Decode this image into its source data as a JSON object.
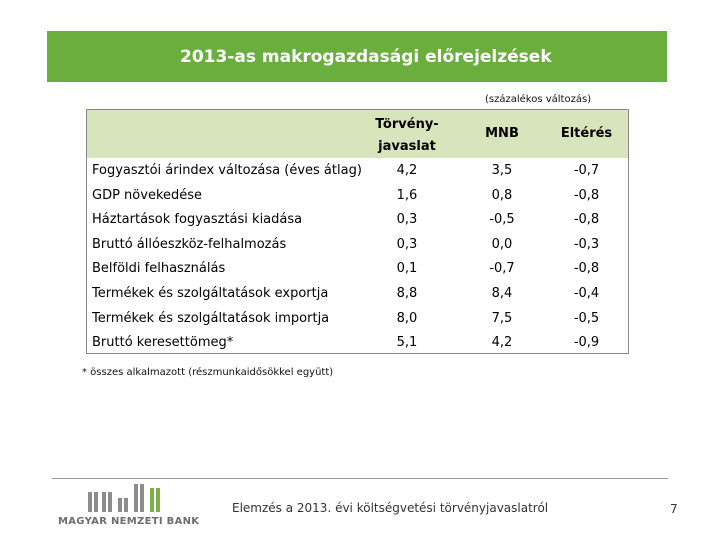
{
  "title": "2013-as makrogazdasági előrejelzések",
  "unit_note": "(százalékos változás)",
  "table": {
    "headers": {
      "col1_line1": "Törvény-",
      "col1_line2": "javaslat",
      "col2": "MNB",
      "col3": "Eltérés"
    },
    "rows": [
      {
        "label": "Fogyasztói árindex változása (éves átlag)",
        "v1": "4,2",
        "v2": "3,5",
        "v3": "-0,7"
      },
      {
        "label": "GDP növekedése",
        "v1": "1,6",
        "v2": "0,8",
        "v3": "-0,8"
      },
      {
        "label": "Háztartások fogyasztási kiadása",
        "v1": "0,3",
        "v2": "-0,5",
        "v3": "-0,8"
      },
      {
        "label": "Bruttó állóeszköz-felhalmozás",
        "v1": "0,3",
        "v2": "0,0",
        "v3": "-0,3"
      },
      {
        "label": "Belföldi felhasználás",
        "v1": "0,1",
        "v2": "-0,7",
        "v3": "-0,8"
      },
      {
        "label": "Termékek és szolgáltatások exportja",
        "v1": "8,8",
        "v2": "8,4",
        "v3": "-0,4"
      },
      {
        "label": "Termékek és szolgáltatások importja",
        "v1": "8,0",
        "v2": "7,5",
        "v3": "-0,5"
      },
      {
        "label": "Bruttó keresettömeg*",
        "v1": "5,1",
        "v2": "4,2",
        "v3": "-0,9"
      }
    ]
  },
  "footnote": "* összes alkalmazott (részmunkaidősökkel együtt)",
  "footer": {
    "logo_text": "MAGYAR NEMZETI BANK",
    "center_text": "Elemzés a 2013. évi költségvetési törvényjavaslatról",
    "page_number": "7"
  },
  "colors": {
    "title_bg": "#6aaf3d",
    "header_bg": "#d8e4bc",
    "logo_grey": "#8c8c8c",
    "logo_green": "#7bb045"
  }
}
